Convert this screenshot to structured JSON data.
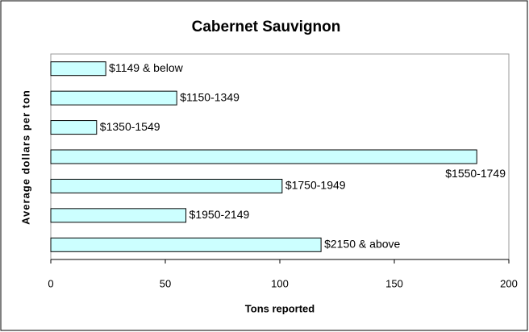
{
  "chart_data": {
    "type": "bar",
    "orientation": "horizontal",
    "title": "Cabernet Sauvignon",
    "xlabel": "Tons reported",
    "ylabel": "Average dollars per ton",
    "categories": [
      "$1149 & below",
      "$1150-1349",
      "$1350-1549",
      "$1550-1749",
      "$1750-1949",
      "$1950-2149",
      "$2150 & above"
    ],
    "values": [
      24,
      55,
      20,
      186,
      101,
      59,
      118
    ],
    "color": "#ccffff",
    "xlim": [
      0,
      200
    ],
    "xticks": [
      0,
      50,
      100,
      150,
      200
    ],
    "grid": false
  }
}
